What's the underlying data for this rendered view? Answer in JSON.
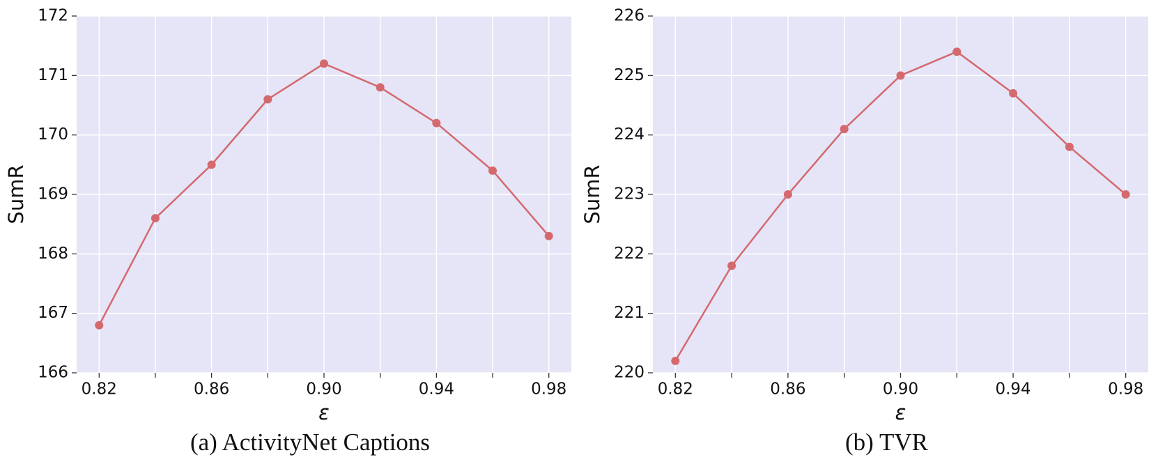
{
  "chart_data": [
    {
      "type": "line",
      "caption": "(a) ActivityNet Captions",
      "xlabel": "ε",
      "ylabel": "SumR",
      "x": [
        0.82,
        0.84,
        0.86,
        0.88,
        0.9,
        0.92,
        0.94,
        0.96,
        0.98
      ],
      "values": [
        166.8,
        168.6,
        169.5,
        170.6,
        171.2,
        170.8,
        170.2,
        169.4,
        168.3
      ],
      "color": "#d4696e",
      "grid": true,
      "xlim": [
        0.812,
        0.988
      ],
      "xticks": [
        0.82,
        0.86,
        {
          "value": 0.9,
          "label": "0.90"
        },
        0.94,
        0.98
      ],
      "xminor": [
        0.84,
        0.88,
        0.92,
        0.96
      ],
      "ylim": [
        166,
        172
      ],
      "yticks": [
        166,
        167,
        168,
        169,
        170,
        171,
        172
      ]
    },
    {
      "type": "line",
      "caption": "(b) TVR",
      "xlabel": "ε",
      "ylabel": "SumR",
      "x": [
        0.82,
        0.84,
        0.86,
        0.88,
        0.9,
        0.92,
        0.94,
        0.96,
        0.98
      ],
      "values": [
        220.2,
        221.8,
        223.0,
        224.1,
        225.0,
        225.4,
        224.7,
        223.8,
        223.0
      ],
      "color": "#d4696e",
      "grid": true,
      "xlim": [
        0.812,
        0.988
      ],
      "xticks": [
        0.82,
        0.86,
        {
          "value": 0.9,
          "label": "0.90"
        },
        0.94,
        0.98
      ],
      "xminor": [
        0.84,
        0.88,
        0.92,
        0.96
      ],
      "ylim": [
        220,
        226
      ],
      "yticks": [
        220,
        221,
        222,
        223,
        224,
        225,
        226
      ]
    }
  ]
}
